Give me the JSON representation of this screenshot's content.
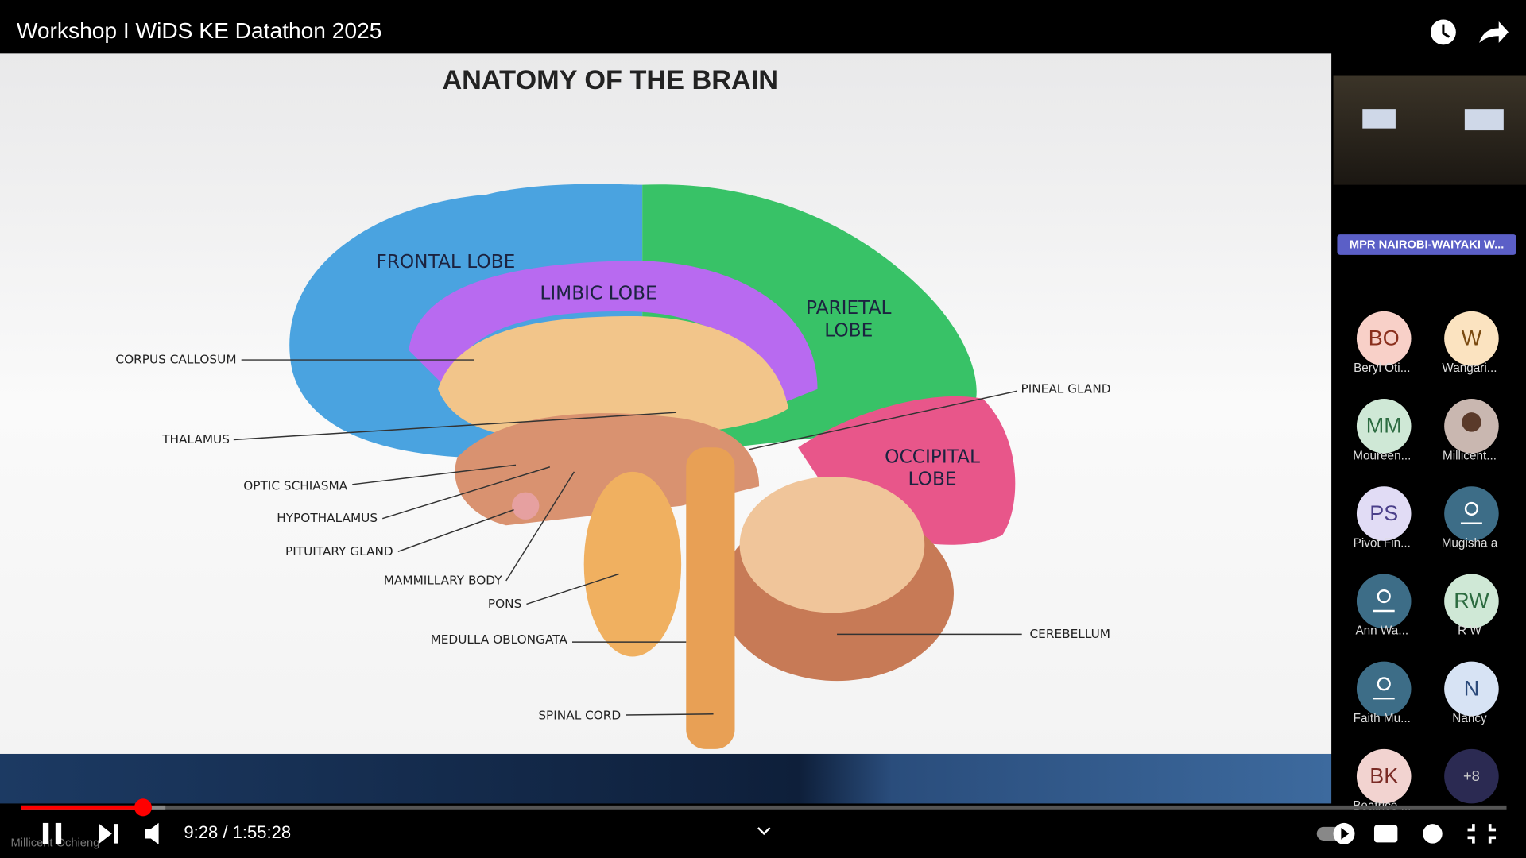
{
  "header": {
    "title": "Workshop I WiDS KE Datathon 2025"
  },
  "slide": {
    "title": "ANATOMY OF THE BRAIN",
    "lobes": [
      "FRONTAL LOBE",
      "LIMBIC LOBE",
      "PARIETAL LOBE",
      "OCCIPITAL LOBE"
    ],
    "labels": [
      "CORPUS CALLOSUM",
      "THALAMUS",
      "OPTIC SCHIASMA",
      "HYPOTHALAMUS",
      "PITUITARY GLAND",
      "MAMMILLARY BODY",
      "PONS",
      "MEDULLA OBLONGATA",
      "SPINAL CORD",
      "PINEAL GLAND",
      "CEREBELLUM"
    ]
  },
  "meeting": {
    "room": "MPR NAIROBI-WAIYAKI W...",
    "participants": [
      {
        "initials": "BO",
        "name": "Beryl Oti..."
      },
      {
        "initials": "W",
        "name": "Wangari..."
      },
      {
        "initials": "MM",
        "name": "Moureen..."
      },
      {
        "name": "Millicent..."
      },
      {
        "initials": "PS",
        "name": "Pivot Fin..."
      },
      {
        "name": "Mugisha a"
      },
      {
        "name": "Ann Wa..."
      },
      {
        "initials": "RW",
        "name": "R W"
      },
      {
        "name": "Faith Mu..."
      },
      {
        "initials": "N",
        "name": "Nancy"
      },
      {
        "initials": "BK",
        "name": "Beatrice ..."
      }
    ],
    "more": "+8"
  },
  "player": {
    "time": "9:28 / 1:55:28",
    "caption": "Millicent Ochieng"
  }
}
